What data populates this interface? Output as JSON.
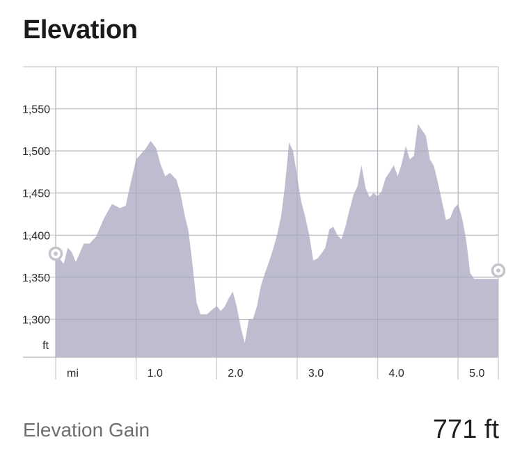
{
  "title": "Elevation",
  "colors": {
    "area_fill": "#b9b9cc",
    "grid": "#d3d3d6",
    "axis": "#bdbdc1",
    "marker": "#c4c4cd"
  },
  "chart_data": {
    "type": "area",
    "title": "Elevation",
    "xlabel": "mi",
    "ylabel": "ft",
    "xlim": [
      0,
      5.5
    ],
    "ylim": [
      1255,
      1600
    ],
    "grid": true,
    "x_ticks": [
      {
        "value": 0.0,
        "label": "mi"
      },
      {
        "value": 1.0,
        "label": "1.0"
      },
      {
        "value": 2.0,
        "label": "2.0"
      },
      {
        "value": 3.0,
        "label": "3.0"
      },
      {
        "value": 4.0,
        "label": "4.0"
      },
      {
        "value": 5.0,
        "label": "5.0"
      }
    ],
    "y_ticks": [
      {
        "value": 1550,
        "label": "1,550"
      },
      {
        "value": 1500,
        "label": "1,500"
      },
      {
        "value": 1450,
        "label": "1,450"
      },
      {
        "value": 1400,
        "label": "1,400"
      },
      {
        "value": 1350,
        "label": "1,350"
      },
      {
        "value": 1300,
        "label": "1,300"
      },
      {
        "value": 1255,
        "label": "ft"
      }
    ],
    "series": [
      {
        "x": [
          0.0,
          0.05,
          0.1,
          0.15,
          0.2,
          0.25,
          0.35,
          0.42,
          0.5,
          0.6,
          0.7,
          0.8,
          0.87,
          0.95,
          1.0,
          1.12,
          1.18,
          1.25,
          1.3,
          1.36,
          1.42,
          1.5,
          1.55,
          1.6,
          1.65,
          1.7,
          1.75,
          1.8,
          1.88,
          1.95,
          2.0,
          2.05,
          2.1,
          2.15,
          2.2,
          2.25,
          2.3,
          2.35,
          2.4,
          2.45,
          2.5,
          2.55,
          2.6,
          2.65,
          2.7,
          2.75,
          2.8,
          2.85,
          2.9,
          2.95,
          3.0,
          3.05,
          3.1,
          3.15,
          3.2,
          3.25,
          3.3,
          3.35,
          3.4,
          3.45,
          3.5,
          3.55,
          3.6,
          3.65,
          3.7,
          3.75,
          3.8,
          3.85,
          3.9,
          3.95,
          4.0,
          4.05,
          4.1,
          4.15,
          4.2,
          4.25,
          4.3,
          4.35,
          4.4,
          4.45,
          4.5,
          4.55,
          4.6,
          4.65,
          4.7,
          4.75,
          4.8,
          4.85,
          4.9,
          4.95,
          5.0,
          5.05,
          5.1,
          5.15,
          5.2,
          5.25,
          5.3,
          5.35,
          5.4,
          5.45,
          5.5
        ],
        "y": [
          1373,
          1372,
          1366,
          1385,
          1380,
          1368,
          1390,
          1390,
          1398,
          1420,
          1437,
          1432,
          1435,
          1470,
          1490,
          1503,
          1512,
          1503,
          1485,
          1470,
          1474,
          1466,
          1450,
          1425,
          1405,
          1365,
          1320,
          1306,
          1306,
          1312,
          1316,
          1310,
          1315,
          1325,
          1333,
          1315,
          1290,
          1272,
          1300,
          1300,
          1315,
          1340,
          1355,
          1368,
          1383,
          1400,
          1422,
          1460,
          1510,
          1500,
          1470,
          1440,
          1422,
          1400,
          1370,
          1372,
          1378,
          1385,
          1407,
          1410,
          1400,
          1395,
          1410,
          1430,
          1448,
          1458,
          1483,
          1456,
          1445,
          1450,
          1446,
          1452,
          1468,
          1475,
          1483,
          1470,
          1485,
          1506,
          1490,
          1494,
          1532,
          1525,
          1518,
          1490,
          1482,
          1462,
          1440,
          1418,
          1420,
          1432,
          1437,
          1420,
          1395,
          1355,
          1348,
          1348,
          1348,
          1348,
          1348,
          1348,
          1348
        ]
      }
    ],
    "start_marker": {
      "x": 0.0,
      "y": 1378
    },
    "end_marker": {
      "x": 5.5,
      "y": 1358
    }
  },
  "stats": {
    "gain_label": "Elevation Gain",
    "gain_value": "771 ft"
  }
}
